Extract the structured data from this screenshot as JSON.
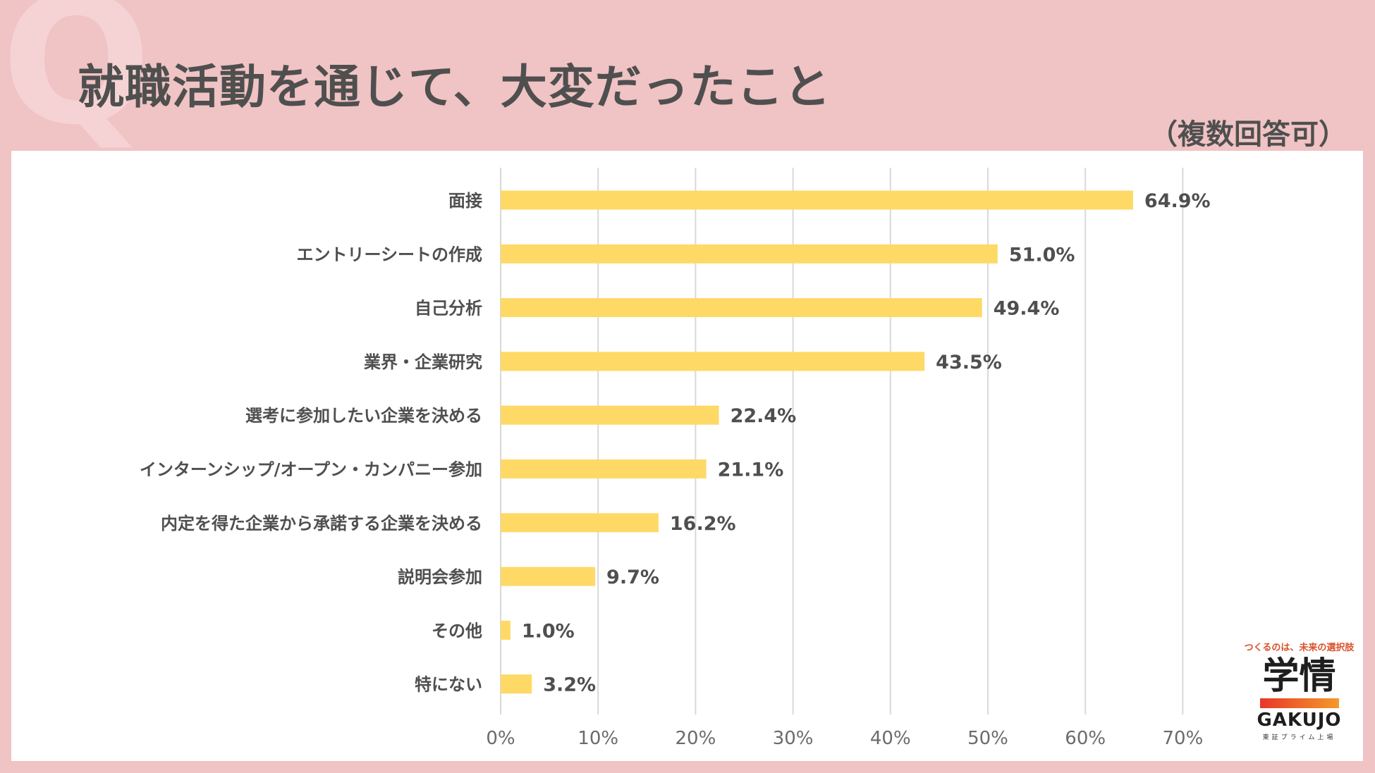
{
  "header": {
    "q_mark": "Q",
    "title": "就職活動を通じて、大変だったこと",
    "note": "（複数回答可）"
  },
  "logo": {
    "tagline": "つくるのは、未来の選択肢",
    "kanji": "学情",
    "brand": "GAKUJO",
    "sub": "東証プライム上場"
  },
  "colors": {
    "background": "#f0c3c4",
    "bar": "#ffd966",
    "text": "#4f4f4f",
    "grid": "#d9d9d9"
  },
  "chart_data": {
    "type": "bar",
    "orientation": "horizontal",
    "categories": [
      "面接",
      "エントリーシートの作成",
      "自己分析",
      "業界・企業研究",
      "選考に参加したい企業を決める",
      "インターンシップ/オープン・カンパニー参加",
      "内定を得た企業から承諾する企業を決める",
      "説明会参加",
      "その他",
      "特にない"
    ],
    "values": [
      64.9,
      51.0,
      49.4,
      43.5,
      22.4,
      21.1,
      16.2,
      9.7,
      1.0,
      3.2
    ],
    "value_labels": [
      "64.9%",
      "51.0%",
      "49.4%",
      "43.5%",
      "22.4%",
      "21.1%",
      "16.2%",
      "9.7%",
      "1.0%",
      "3.2%"
    ],
    "xlim": [
      0,
      70
    ],
    "ticks": [
      0,
      10,
      20,
      30,
      40,
      50,
      60,
      70
    ],
    "tick_labels": [
      "0%",
      "10%",
      "20%",
      "30%",
      "40%",
      "50%",
      "60%",
      "70%"
    ],
    "grid": true,
    "legend": "none",
    "title": "就職活動を通じて、大変だったこと",
    "xlabel": "",
    "ylabel": ""
  }
}
